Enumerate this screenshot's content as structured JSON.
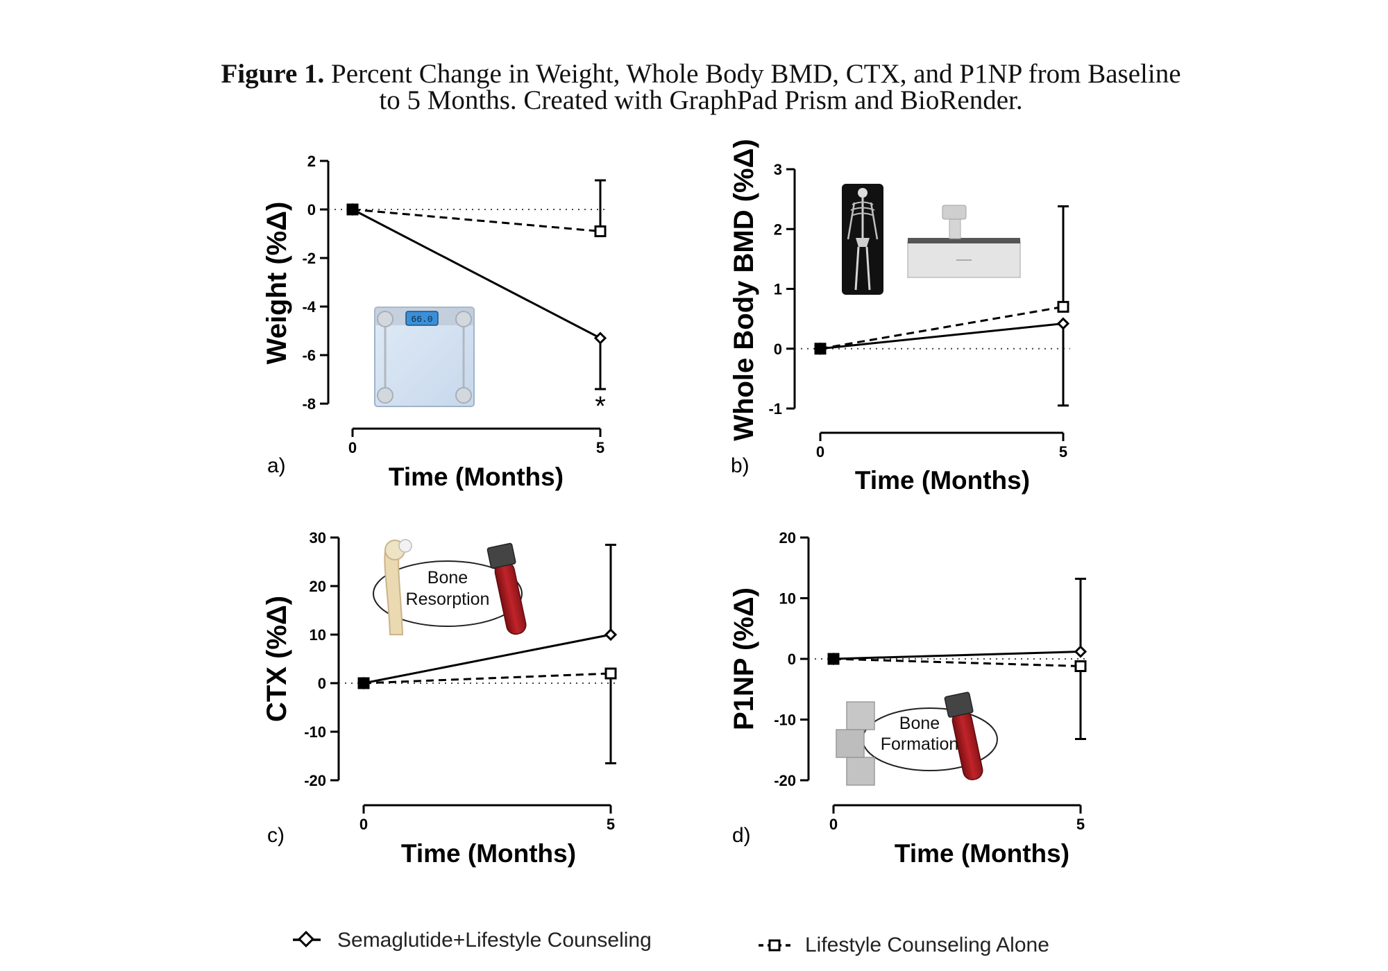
{
  "caption": {
    "bold": "Figure 1.",
    "text": " Percent Change in Weight, Whole Body BMD, CTX, and P1NP from Baseline to 5 Months. Created with GraphPad Prism and BioRender."
  },
  "legend": {
    "semaglutide": "Semaglutide+Lifestyle Counseling",
    "lifestyle": "Lifestyle Counseling Alone"
  },
  "illustrations": {
    "scale_display": "66.0",
    "resorption_line1": "Bone",
    "resorption_line2": "Resorption",
    "formation_line1": "Bone",
    "formation_line2": "Formation"
  },
  "chart_data": [
    {
      "panel": "a)",
      "type": "line",
      "xlabel": "Time (Months)",
      "ylabel": "Weight (%Δ)",
      "x": [
        0,
        5
      ],
      "ylim": [
        -8,
        2
      ],
      "yticks": [
        2,
        0,
        -2,
        -4,
        -6,
        -8
      ],
      "series": [
        {
          "name": "Semaglutide+Lifestyle Counseling",
          "values": [
            0,
            -5.3
          ],
          "error_upper": [
            0,
            0
          ],
          "error_lower": [
            0,
            2.1
          ],
          "marker": "diamond",
          "dash": "solid",
          "significance": [
            null,
            "*"
          ]
        },
        {
          "name": "Lifestyle Counseling Alone",
          "values": [
            0,
            -0.9
          ],
          "error_upper": [
            0,
            2.1
          ],
          "error_lower": [
            0,
            0
          ],
          "marker": "square",
          "dash": "dashed"
        }
      ]
    },
    {
      "panel": "b)",
      "type": "line",
      "xlabel": "Time (Months)",
      "ylabel": "Whole Body BMD (%Δ)",
      "x": [
        0,
        5
      ],
      "ylim": [
        -1,
        3
      ],
      "yticks": [
        3,
        2,
        1,
        0,
        -1
      ],
      "series": [
        {
          "name": "Semaglutide+Lifestyle Counseling",
          "values": [
            0,
            0.42
          ],
          "error_upper": [
            0,
            0
          ],
          "error_lower": [
            0,
            1.37
          ],
          "marker": "diamond",
          "dash": "solid"
        },
        {
          "name": "Lifestyle Counseling Alone",
          "values": [
            0,
            0.7
          ],
          "error_upper": [
            0,
            1.68
          ],
          "error_lower": [
            0,
            0
          ],
          "marker": "square",
          "dash": "dashed"
        }
      ]
    },
    {
      "panel": "c)",
      "type": "line",
      "xlabel": "Time (Months)",
      "ylabel": "CTX (%Δ)",
      "x": [
        0,
        5
      ],
      "ylim": [
        -20,
        30
      ],
      "yticks": [
        30,
        20,
        10,
        0,
        -10,
        -20
      ],
      "series": [
        {
          "name": "Semaglutide+Lifestyle Counseling",
          "values": [
            0,
            10
          ],
          "error_upper": [
            0,
            18.5
          ],
          "error_lower": [
            0,
            0
          ],
          "marker": "diamond",
          "dash": "solid"
        },
        {
          "name": "Lifestyle Counseling Alone",
          "values": [
            0,
            2
          ],
          "error_upper": [
            0,
            0
          ],
          "error_lower": [
            0,
            18.5
          ],
          "marker": "square",
          "dash": "dashed"
        }
      ]
    },
    {
      "panel": "d)",
      "type": "line",
      "xlabel": "Time (Months)",
      "ylabel": "P1NP (%Δ)",
      "x": [
        0,
        5
      ],
      "ylim": [
        -20,
        20
      ],
      "yticks": [
        20,
        10,
        0,
        -10,
        -20
      ],
      "series": [
        {
          "name": "Semaglutide+Lifestyle Counseling",
          "values": [
            0,
            1.2
          ],
          "error_upper": [
            0,
            12
          ],
          "error_lower": [
            0,
            0
          ],
          "marker": "diamond",
          "dash": "solid"
        },
        {
          "name": "Lifestyle Counseling Alone",
          "values": [
            0,
            -1.2
          ],
          "error_upper": [
            0,
            0
          ],
          "error_lower": [
            0,
            12
          ],
          "marker": "square",
          "dash": "dashed"
        }
      ]
    }
  ]
}
